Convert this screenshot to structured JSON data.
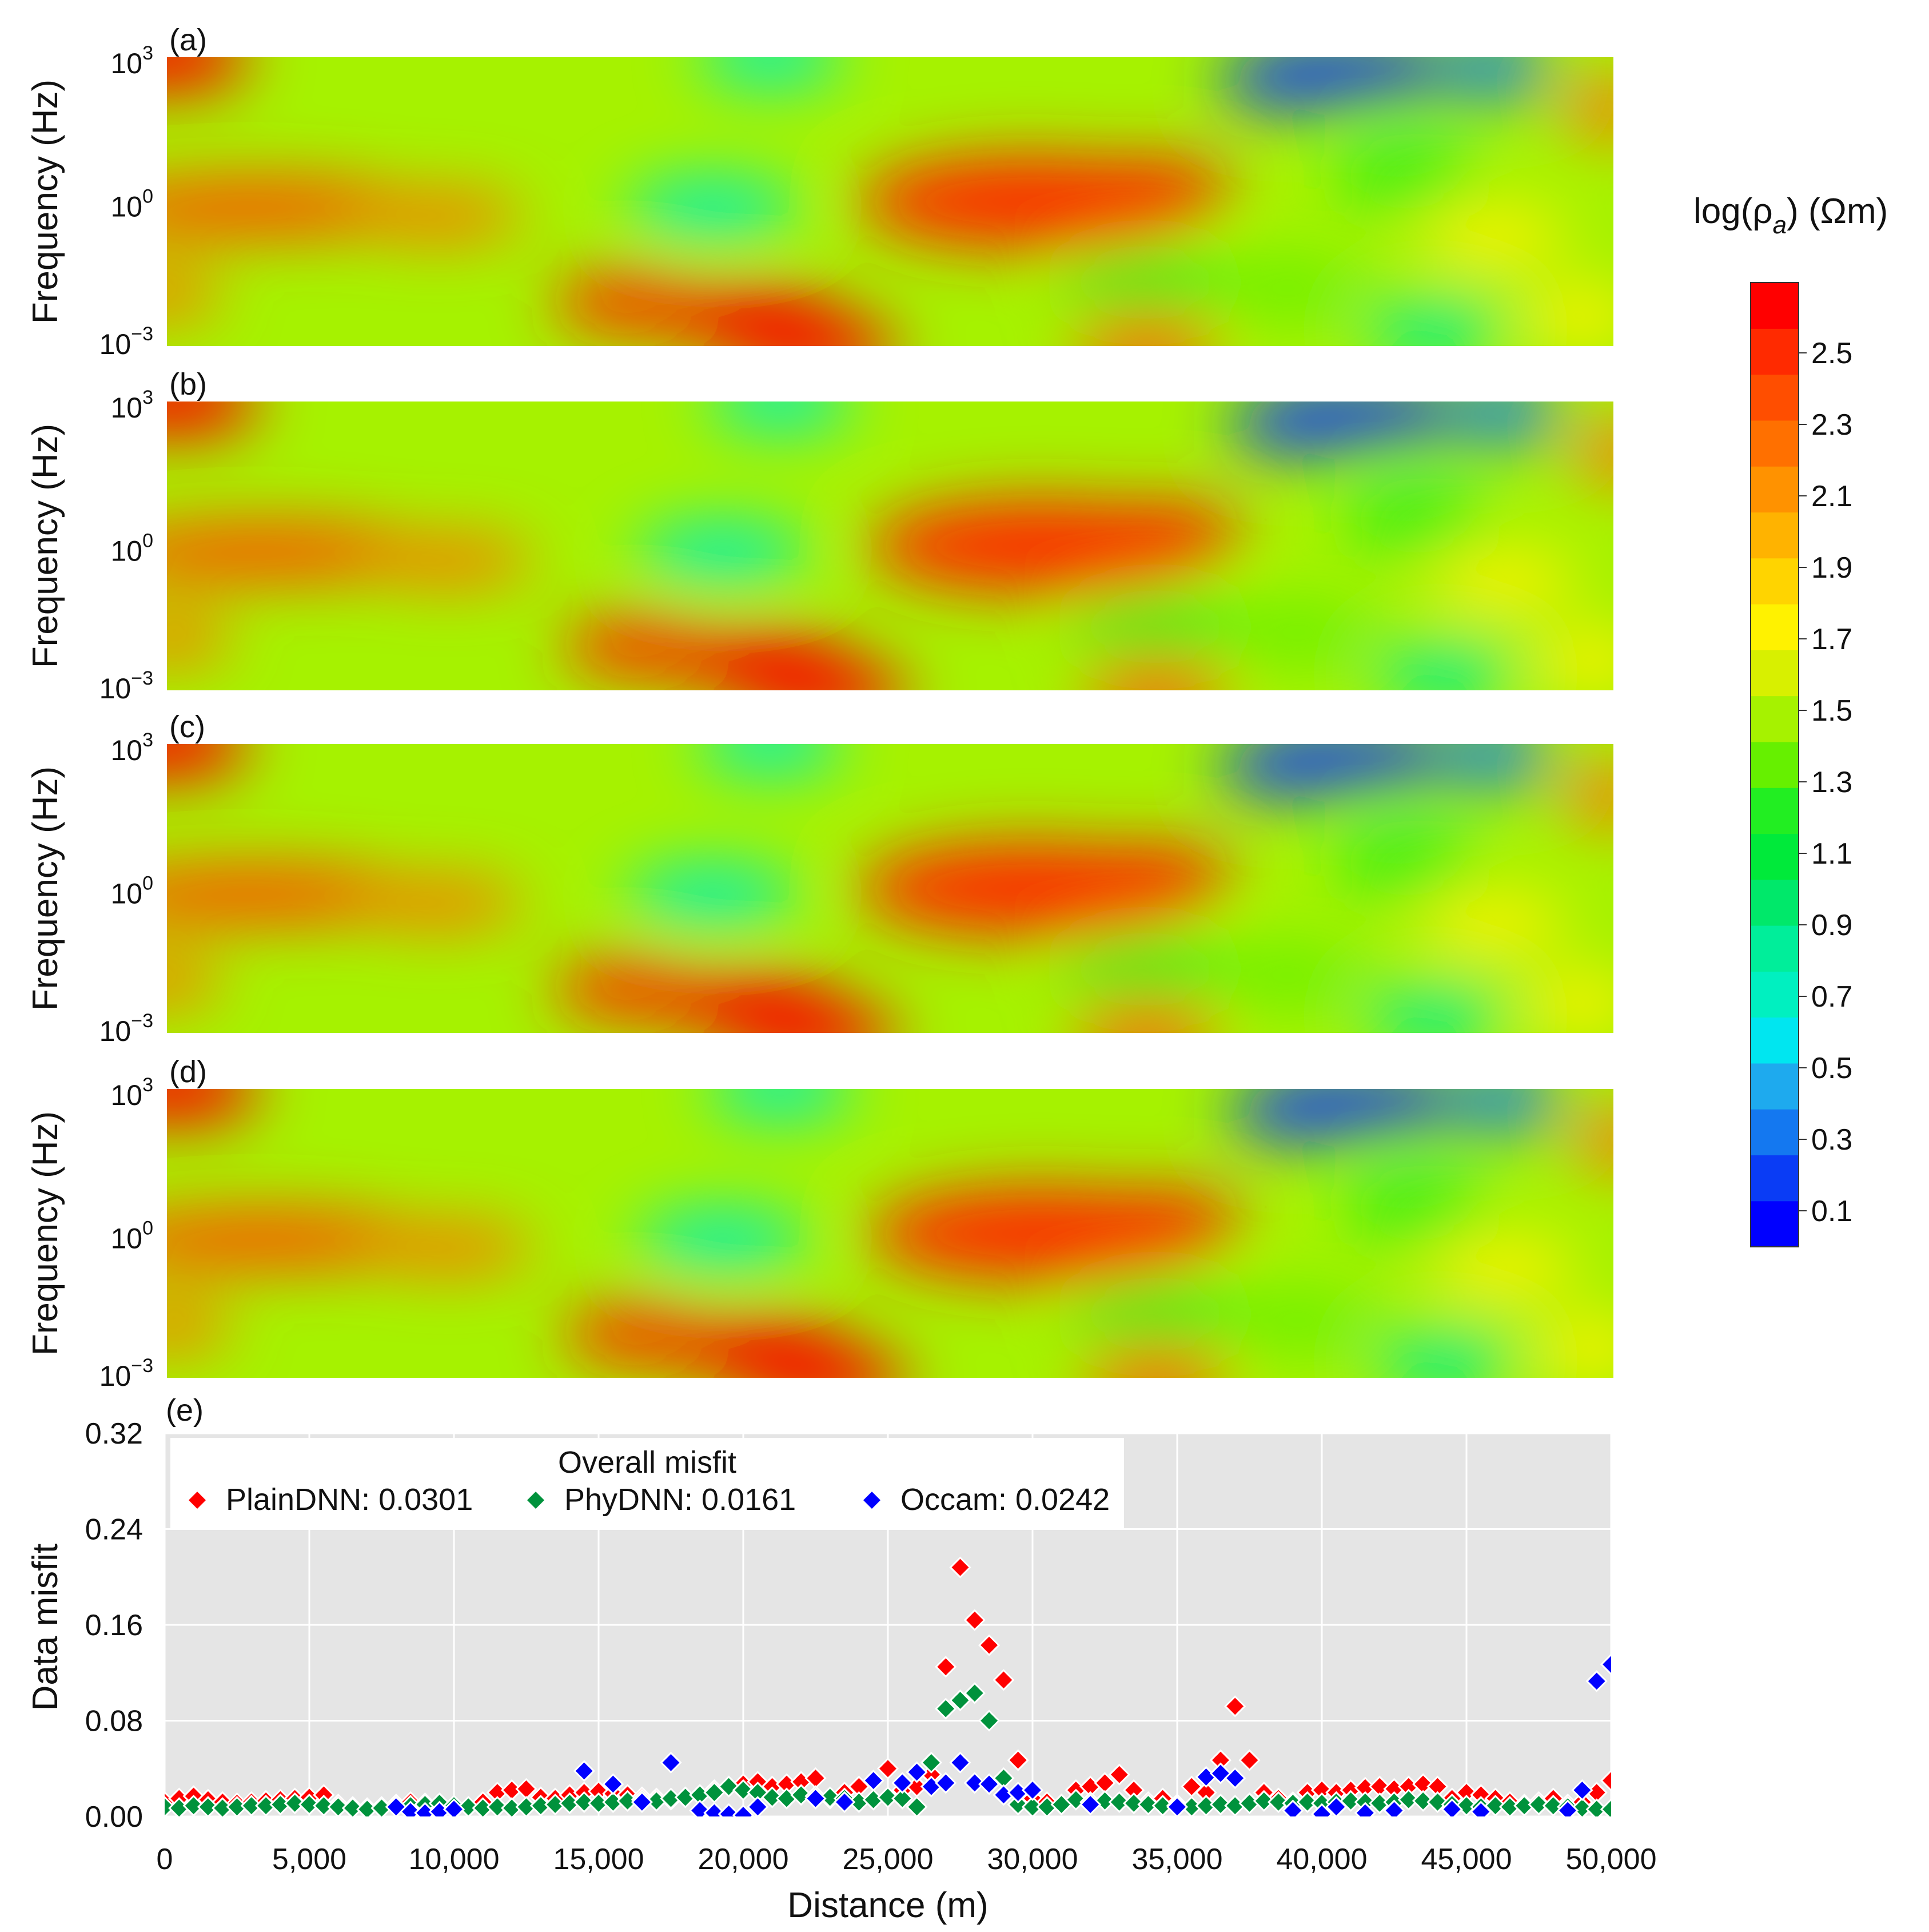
{
  "colorbar": {
    "title_main": "log(ρ",
    "title_sub": "a",
    "title_unit": ") (Ωm)",
    "ticks": [
      "2.5",
      "2.3",
      "2.1",
      "1.9",
      "1.7",
      "1.5",
      "1.3",
      "1.1",
      "0.9",
      "0.7",
      "0.5",
      "0.3",
      "0.1"
    ],
    "colors": [
      "#0000ff",
      "#0a3cf5",
      "#1478f0",
      "#1eaaee",
      "#00e6f0",
      "#00f0c0",
      "#00ee9a",
      "#00e86a",
      "#00ea3a",
      "#22ee22",
      "#66f000",
      "#a6f200",
      "#d8f000",
      "#fff200",
      "#ffd400",
      "#ffb300",
      "#ff9200",
      "#ff7000",
      "#ff4e00",
      "#ff2a00",
      "#ff0000"
    ]
  },
  "heatmap_panels": [
    {
      "label": "(a)",
      "ylabel": "Frequency (Hz)",
      "yticks": [
        {
          "base": "10",
          "exp": "3"
        },
        {
          "base": "10",
          "exp": "0"
        },
        {
          "base": "10",
          "exp": "−3"
        }
      ]
    },
    {
      "label": "(b)",
      "ylabel": "Frequency (Hz)",
      "yticks": [
        {
          "base": "10",
          "exp": "3"
        },
        {
          "base": "10",
          "exp": "0"
        },
        {
          "base": "10",
          "exp": "−3"
        }
      ]
    },
    {
      "label": "(c)",
      "ylabel": "Frequency (Hz)",
      "yticks": [
        {
          "base": "10",
          "exp": "3"
        },
        {
          "base": "10",
          "exp": "0"
        },
        {
          "base": "10",
          "exp": "−3"
        }
      ]
    },
    {
      "label": "(d)",
      "ylabel": "Frequency (Hz)",
      "yticks": [
        {
          "base": "10",
          "exp": "3"
        },
        {
          "base": "10",
          "exp": "0"
        },
        {
          "base": "10",
          "exp": "−3"
        }
      ]
    }
  ],
  "chart_data": {
    "type": "scatter",
    "panel_label": "(e)",
    "title": "",
    "xlabel": "Distance (m)",
    "ylabel": "Data misfit",
    "xlim": [
      0,
      50000
    ],
    "ylim": [
      0,
      0.32
    ],
    "xticks": [
      0,
      5000,
      10000,
      15000,
      20000,
      25000,
      30000,
      35000,
      40000,
      45000,
      50000
    ],
    "xtick_labels": [
      "0",
      "5,000",
      "10,000",
      "15,000",
      "20,000",
      "25,000",
      "30,000",
      "35,000",
      "40,000",
      "45,000",
      "50,000"
    ],
    "yticks": [
      0,
      0.08,
      0.16,
      0.24,
      0.32
    ],
    "ytick_labels": [
      "0.00",
      "0.08",
      "0.16",
      "0.24",
      "0.32"
    ],
    "grid": true,
    "legend": {
      "title": "Overall misfit",
      "position": "top-left"
    },
    "series": [
      {
        "name": "PlainDNN",
        "legend_label": "PlainDNN: 0.0301",
        "color": "#ff0000",
        "x": [
          0,
          500,
          1000,
          1500,
          2000,
          2500,
          3000,
          3500,
          4000,
          4500,
          5000,
          5500,
          6000,
          6500,
          7000,
          7500,
          8000,
          8500,
          9000,
          9500,
          10000,
          10500,
          11000,
          11500,
          12000,
          12500,
          13000,
          13500,
          14000,
          14500,
          15000,
          15500,
          16000,
          16500,
          17000,
          17500,
          18000,
          18500,
          19000,
          19500,
          20000,
          20500,
          21000,
          21500,
          22000,
          22500,
          23000,
          23500,
          24000,
          24500,
          25000,
          25500,
          26000,
          26500,
          27000,
          27500,
          28000,
          28500,
          29000,
          29500,
          30000,
          30500,
          31000,
          31500,
          32000,
          32500,
          33000,
          33500,
          34000,
          34500,
          35000,
          35500,
          36000,
          36500,
          37000,
          37500,
          38000,
          38500,
          39000,
          39500,
          40000,
          40500,
          41000,
          41500,
          42000,
          42500,
          43000,
          43500,
          44000,
          44500,
          45000,
          45500,
          46000,
          46500,
          47000,
          47500,
          48000,
          48500,
          49000,
          49500,
          50000
        ],
        "y": [
          0.012,
          0.015,
          0.017,
          0.014,
          0.012,
          0.011,
          0.012,
          0.013,
          0.014,
          0.015,
          0.016,
          0.018,
          0.01,
          0.008,
          0.007,
          0.008,
          0.01,
          0.012,
          0.011,
          0.01,
          0.009,
          0.008,
          0.012,
          0.02,
          0.022,
          0.023,
          0.016,
          0.015,
          0.018,
          0.02,
          0.021,
          0.019,
          0.018,
          0.016,
          0.015,
          0.014,
          0.016,
          0.018,
          0.022,
          0.025,
          0.027,
          0.029,
          0.025,
          0.027,
          0.029,
          0.032,
          0.015,
          0.02,
          0.025,
          0.03,
          0.04,
          0.022,
          0.025,
          0.035,
          0.125,
          0.208,
          0.164,
          0.143,
          0.114,
          0.047,
          0.015,
          0.012,
          0.01,
          0.022,
          0.025,
          0.028,
          0.035,
          0.022,
          0.012,
          0.015,
          0.01,
          0.025,
          0.02,
          0.047,
          0.092,
          0.047,
          0.02,
          0.015,
          0.012,
          0.02,
          0.022,
          0.02,
          0.022,
          0.024,
          0.025,
          0.023,
          0.025,
          0.027,
          0.025,
          0.015,
          0.02,
          0.018,
          0.015,
          0.012,
          0.01,
          0.012,
          0.015,
          0.01,
          0.012,
          0.02,
          0.03
        ],
        "note": "estimated from markers"
      },
      {
        "name": "PhyDNN",
        "legend_label": "PhyDNN: 0.0161",
        "color": "#00923c",
        "x": [
          0,
          500,
          1000,
          1500,
          2000,
          2500,
          3000,
          3500,
          4000,
          4500,
          5000,
          5500,
          6000,
          6500,
          7000,
          7500,
          8000,
          8500,
          9000,
          9500,
          10000,
          10500,
          11000,
          11500,
          12000,
          12500,
          13000,
          13500,
          14000,
          14500,
          15000,
          15500,
          16000,
          16500,
          17000,
          17500,
          18000,
          18500,
          19000,
          19500,
          20000,
          20500,
          21000,
          21500,
          22000,
          22500,
          23000,
          23500,
          24000,
          24500,
          25000,
          25500,
          26000,
          26500,
          27000,
          27500,
          28000,
          28500,
          29000,
          29500,
          30000,
          30500,
          31000,
          31500,
          32000,
          32500,
          33000,
          33500,
          34000,
          34500,
          35000,
          35500,
          36000,
          36500,
          37000,
          37500,
          38000,
          38500,
          39000,
          39500,
          40000,
          40500,
          41000,
          41500,
          42000,
          42500,
          43000,
          43500,
          44000,
          44500,
          45000,
          45500,
          46000,
          46500,
          47000,
          47500,
          48000,
          48500,
          49000,
          49500,
          50000
        ],
        "y": [
          0.008,
          0.007,
          0.009,
          0.008,
          0.007,
          0.008,
          0.009,
          0.009,
          0.01,
          0.011,
          0.01,
          0.009,
          0.008,
          0.007,
          0.006,
          0.007,
          0.008,
          0.009,
          0.01,
          0.011,
          0.009,
          0.008,
          0.007,
          0.008,
          0.007,
          0.008,
          0.009,
          0.01,
          0.011,
          0.012,
          0.011,
          0.012,
          0.013,
          0.014,
          0.013,
          0.015,
          0.016,
          0.018,
          0.02,
          0.025,
          0.022,
          0.02,
          0.016,
          0.015,
          0.018,
          0.017,
          0.016,
          0.015,
          0.012,
          0.014,
          0.016,
          0.015,
          0.008,
          0.045,
          0.09,
          0.097,
          0.103,
          0.08,
          0.032,
          0.01,
          0.008,
          0.008,
          0.01,
          0.014,
          0.012,
          0.013,
          0.012,
          0.011,
          0.01,
          0.009,
          0.009,
          0.008,
          0.009,
          0.01,
          0.009,
          0.011,
          0.013,
          0.012,
          0.011,
          0.012,
          0.011,
          0.012,
          0.013,
          0.012,
          0.011,
          0.012,
          0.014,
          0.013,
          0.012,
          0.01,
          0.009,
          0.008,
          0.009,
          0.008,
          0.009,
          0.01,
          0.009,
          0.008,
          0.007,
          0.006,
          0.006
        ],
        "note": "estimated from markers"
      },
      {
        "name": "Occam",
        "legend_label": "Occam: 0.0242",
        "color": "#0000ff",
        "x": [
          8000,
          8500,
          9000,
          9500,
          10000,
          14500,
          15500,
          16500,
          17500,
          18500,
          19000,
          19500,
          20000,
          20500,
          22500,
          23500,
          24500,
          25500,
          26000,
          26500,
          27000,
          27500,
          28000,
          28500,
          29000,
          29500,
          30000,
          32000,
          35000,
          36000,
          36500,
          37000,
          39000,
          40000,
          40500,
          41500,
          42500,
          44500,
          45500,
          48500,
          49000,
          49500,
          50000
        ],
        "y": [
          0.008,
          0.004,
          0.003,
          0.004,
          0.006,
          0.038,
          0.027,
          0.012,
          0.045,
          0.005,
          0.003,
          0.002,
          0.001,
          0.008,
          0.015,
          0.012,
          0.03,
          0.028,
          0.037,
          0.025,
          0.028,
          0.045,
          0.028,
          0.027,
          0.018,
          0.02,
          0.022,
          0.01,
          0.008,
          0.033,
          0.036,
          0.032,
          0.005,
          0.002,
          0.008,
          0.003,
          0.005,
          0.006,
          0.004,
          0.005,
          0.022,
          0.113,
          0.127
        ],
        "note": "estimated from markers"
      }
    ]
  }
}
